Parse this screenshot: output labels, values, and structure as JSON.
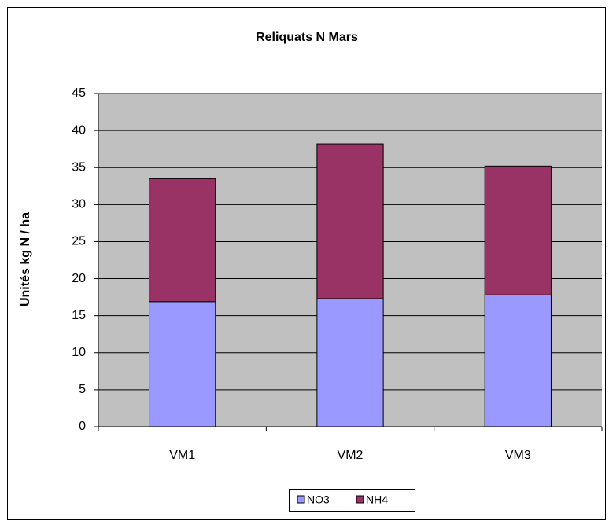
{
  "chart_data": {
    "type": "stacked_bar",
    "title": "Reliquats N Mars",
    "y_label": "Unités kg N / ha",
    "categories": [
      "VM1",
      "VM2",
      "VM3"
    ],
    "series": [
      {
        "name": "NO3",
        "color": "#9999ff",
        "values": [
          16.9,
          17.3,
          17.8
        ]
      },
      {
        "name": "NH4",
        "color": "#993366",
        "values": [
          16.6,
          20.9,
          17.4
        ]
      }
    ],
    "ylim": [
      0,
      45
    ],
    "yticks": [
      0,
      5,
      10,
      15,
      20,
      25,
      30,
      35,
      40,
      45
    ],
    "grid": true,
    "legend": "bottom"
  }
}
